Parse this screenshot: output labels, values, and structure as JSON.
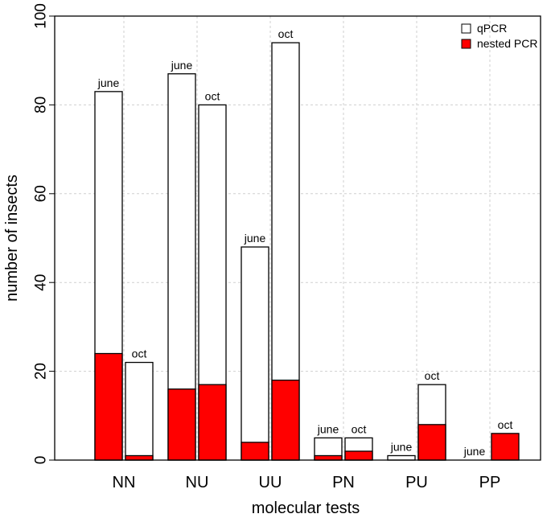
{
  "chart_data": {
    "type": "bar",
    "xlabel": "molecular tests",
    "ylabel": "number of insects",
    "ylim": [
      0,
      100
    ],
    "y_ticks": [
      0,
      20,
      40,
      60,
      80,
      100
    ],
    "grid": true,
    "legend_position": "top-right",
    "categories": [
      "NN",
      "NU",
      "UU",
      "PN",
      "PU",
      "PP"
    ],
    "series": [
      {
        "name": "qPCR",
        "color": "#ffffff"
      },
      {
        "name": "nested PCR",
        "color": "#ff0000"
      }
    ],
    "bars": [
      {
        "category": "NN",
        "label": "june",
        "qPCR": 83,
        "nested_PCR": 24
      },
      {
        "category": "NN",
        "label": "oct",
        "qPCR": 22,
        "nested_PCR": 1
      },
      {
        "category": "NU",
        "label": "june",
        "qPCR": 87,
        "nested_PCR": 16
      },
      {
        "category": "NU",
        "label": "oct",
        "qPCR": 80,
        "nested_PCR": 17
      },
      {
        "category": "UU",
        "label": "june",
        "qPCR": 48,
        "nested_PCR": 4
      },
      {
        "category": "UU",
        "label": "oct",
        "qPCR": 94,
        "nested_PCR": 18
      },
      {
        "category": "PN",
        "label": "june",
        "qPCR": 5,
        "nested_PCR": 1
      },
      {
        "category": "PN",
        "label": "oct",
        "qPCR": 5,
        "nested_PCR": 2
      },
      {
        "category": "PU",
        "label": "june",
        "qPCR": 1,
        "nested_PCR": 0
      },
      {
        "category": "PU",
        "label": "oct",
        "qPCR": 17,
        "nested_PCR": 8
      },
      {
        "category": "PP",
        "label": "june",
        "qPCR": 0,
        "nested_PCR": 0
      },
      {
        "category": "PP",
        "label": "oct",
        "qPCR": 0,
        "nested_PCR": 6
      }
    ]
  }
}
